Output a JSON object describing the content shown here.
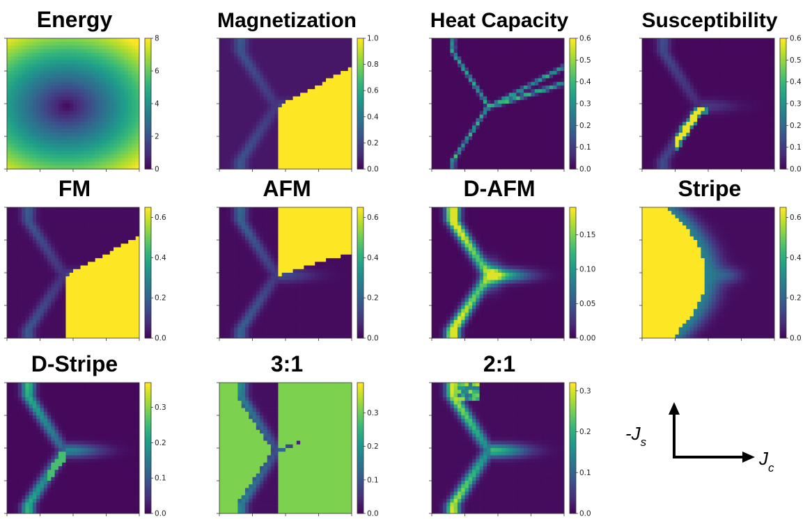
{
  "chart_data": [
    {
      "type": "heatmap",
      "title": "Energy",
      "pattern": "energy",
      "colormap": "viridis",
      "colorbar": {
        "min": 0,
        "max": 8,
        "ticks": [
          "0",
          "2",
          "4",
          "6",
          "8"
        ]
      }
    },
    {
      "type": "heatmap",
      "title": "Magnetization",
      "pattern": "magnetization",
      "colormap": "viridis",
      "colorbar": {
        "min": 0,
        "max": 1.0,
        "ticks": [
          "0.0",
          "0.2",
          "0.4",
          "0.6",
          "0.8",
          "1.0"
        ]
      }
    },
    {
      "type": "heatmap",
      "title": "Heat Capacity",
      "pattern": "heatcap",
      "colormap": "viridis",
      "colorbar": {
        "min": 0,
        "max": 0.6,
        "ticks": [
          "0.0",
          "0.1",
          "0.2",
          "0.3",
          "0.4",
          "0.5",
          "0.6"
        ]
      }
    },
    {
      "type": "heatmap",
      "title": "Susceptibility",
      "pattern": "suscept",
      "colormap": "viridis",
      "colorbar": {
        "min": 0,
        "max": 0.6,
        "ticks": [
          "0.0",
          "0.1",
          "0.2",
          "0.3",
          "0.4",
          "0.5",
          "0.6"
        ]
      }
    },
    {
      "type": "heatmap",
      "title": "FM",
      "pattern": "fm",
      "colormap": "viridis",
      "colorbar": {
        "min": 0,
        "max": 0.65,
        "ticks": [
          "0.0",
          "0.2",
          "0.4",
          "0.6"
        ]
      }
    },
    {
      "type": "heatmap",
      "title": "AFM",
      "pattern": "afm",
      "colormap": "viridis",
      "colorbar": {
        "min": 0,
        "max": 0.65,
        "ticks": [
          "0.0",
          "0.2",
          "0.4",
          "0.6"
        ]
      }
    },
    {
      "type": "heatmap",
      "title": "D-AFM",
      "pattern": "dafm",
      "colormap": "viridis",
      "colorbar": {
        "min": 0,
        "max": 0.19,
        "ticks": [
          "0.00",
          "0.05",
          "0.10",
          "0.15"
        ]
      }
    },
    {
      "type": "heatmap",
      "title": "Stripe",
      "pattern": "stripe",
      "colormap": "viridis",
      "colorbar": {
        "min": 0,
        "max": 0.65,
        "ticks": [
          "0.0",
          "0.2",
          "0.4",
          "0.6"
        ]
      }
    },
    {
      "type": "heatmap",
      "title": "D-Stripe",
      "pattern": "dstripe",
      "colormap": "viridis",
      "colorbar": {
        "min": 0,
        "max": 0.37,
        "ticks": [
          "0.0",
          "0.1",
          "0.2",
          "0.3"
        ]
      }
    },
    {
      "type": "heatmap",
      "title": "3:1",
      "pattern": "r31",
      "colormap": "viridis",
      "colorbar": {
        "min": 0,
        "max": 0.39,
        "ticks": [
          "0.0",
          "0.1",
          "0.2",
          "0.3"
        ]
      }
    },
    {
      "type": "heatmap",
      "title": "2:1",
      "pattern": "r21",
      "colormap": "viridis",
      "colorbar": {
        "min": 0,
        "max": 0.32,
        "ticks": [
          "0.0",
          "0.1",
          "0.2",
          "0.3"
        ]
      }
    }
  ],
  "axes_legend": {
    "y_label": "-J",
    "y_sub": "s",
    "x_label": "J",
    "x_sub": "c"
  }
}
